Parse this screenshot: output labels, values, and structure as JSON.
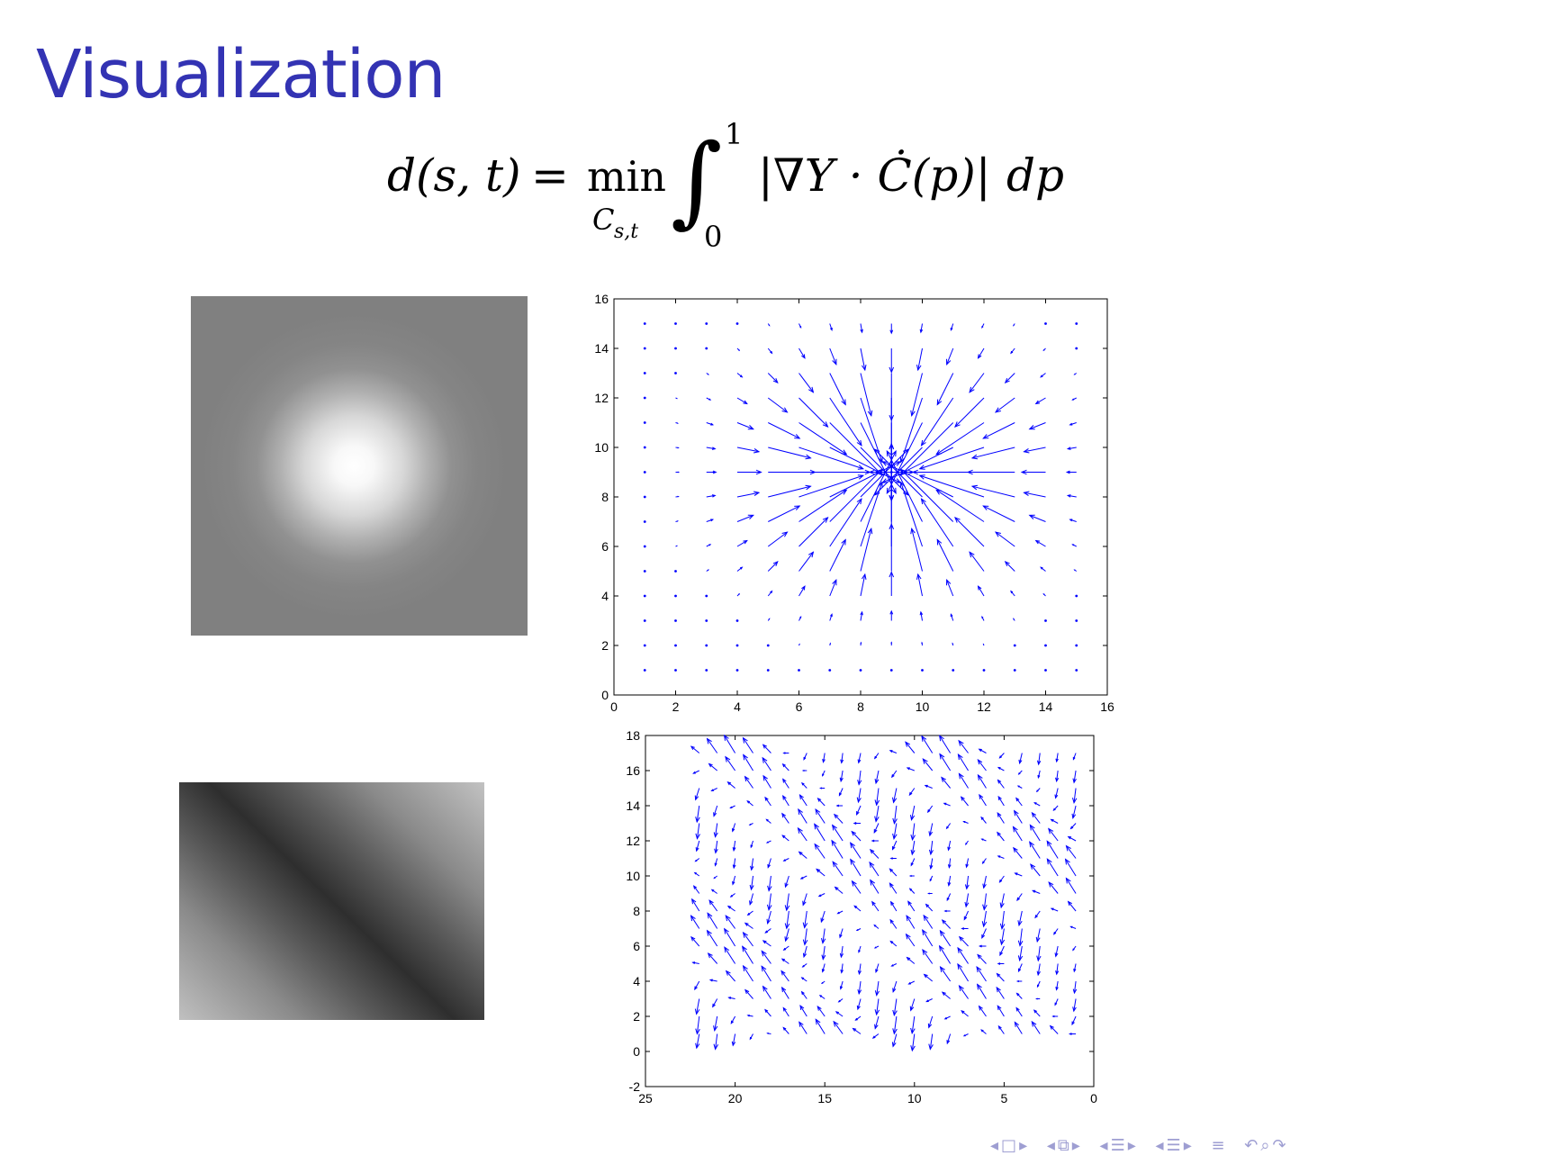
{
  "slide": {
    "title": "Visualization"
  },
  "equation": {
    "lhs": "d(s, t)",
    "equals": "=",
    "min": "min",
    "min_subscript": "C",
    "min_subscript_index": "s,t",
    "integral": "∫",
    "upper_limit": "1",
    "lower_limit": "0",
    "integrand": "|∇Y · Ċ(p)|",
    "differential": "dp"
  },
  "images": [
    {
      "content": "gaussian-blob"
    },
    {
      "content": "diagonal-stripe"
    }
  ],
  "colors": {
    "title": "#3333b3",
    "arrows": "#0000ff",
    "nav": "#9e9ed2"
  },
  "chart_data": [
    {
      "type": "quiver",
      "field": "radial-converging",
      "center": [
        9,
        9
      ],
      "grid_x": [
        1,
        2,
        3,
        4,
        5,
        6,
        7,
        8,
        9,
        10,
        11,
        12,
        13,
        14,
        15
      ],
      "grid_y": [
        1,
        2,
        3,
        4,
        5,
        6,
        7,
        8,
        9,
        10,
        11,
        12,
        13,
        14,
        15
      ],
      "xlim": [
        0,
        16
      ],
      "ylim": [
        0,
        16
      ],
      "xticks": [
        "0",
        "2",
        "4",
        "6",
        "8",
        "10",
        "12",
        "14",
        "16"
      ],
      "yticks": [
        "0",
        "2",
        "4",
        "6",
        "8",
        "10",
        "12",
        "14",
        "16"
      ],
      "title": "",
      "xlabel": "",
      "ylabel": "",
      "grid": false
    },
    {
      "type": "quiver",
      "field": "diagonal-oscillating",
      "grid_x": [
        1,
        2,
        3,
        4,
        5,
        6,
        7,
        8,
        9,
        10,
        11,
        12,
        13,
        14,
        15,
        16,
        17,
        18,
        19,
        20,
        21,
        22
      ],
      "grid_y": [
        1,
        2,
        3,
        4,
        5,
        6,
        7,
        8,
        9,
        10,
        11,
        12,
        13,
        14,
        15,
        16,
        17
      ],
      "xlim": [
        25,
        0
      ],
      "ylim": [
        -2,
        18
      ],
      "xticks": [
        "25",
        "20",
        "15",
        "10",
        "5",
        "0"
      ],
      "yticks": [
        "-2",
        "0",
        "2",
        "4",
        "6",
        "8",
        "10",
        "12",
        "14",
        "16",
        "18"
      ],
      "title": "",
      "xlabel": "",
      "ylabel": "",
      "grid": false
    }
  ],
  "nav": {
    "icons": [
      "prev-arrow",
      "frame-box",
      "next-arrow",
      "prev-arrow",
      "subsection-icon",
      "next-arrow",
      "prev-arrow",
      "section-icon",
      "next-arrow",
      "prev-arrow",
      "section-icon",
      "next-arrow",
      "align-icon",
      "back-icon",
      "search-icon",
      "forward-icon"
    ]
  }
}
